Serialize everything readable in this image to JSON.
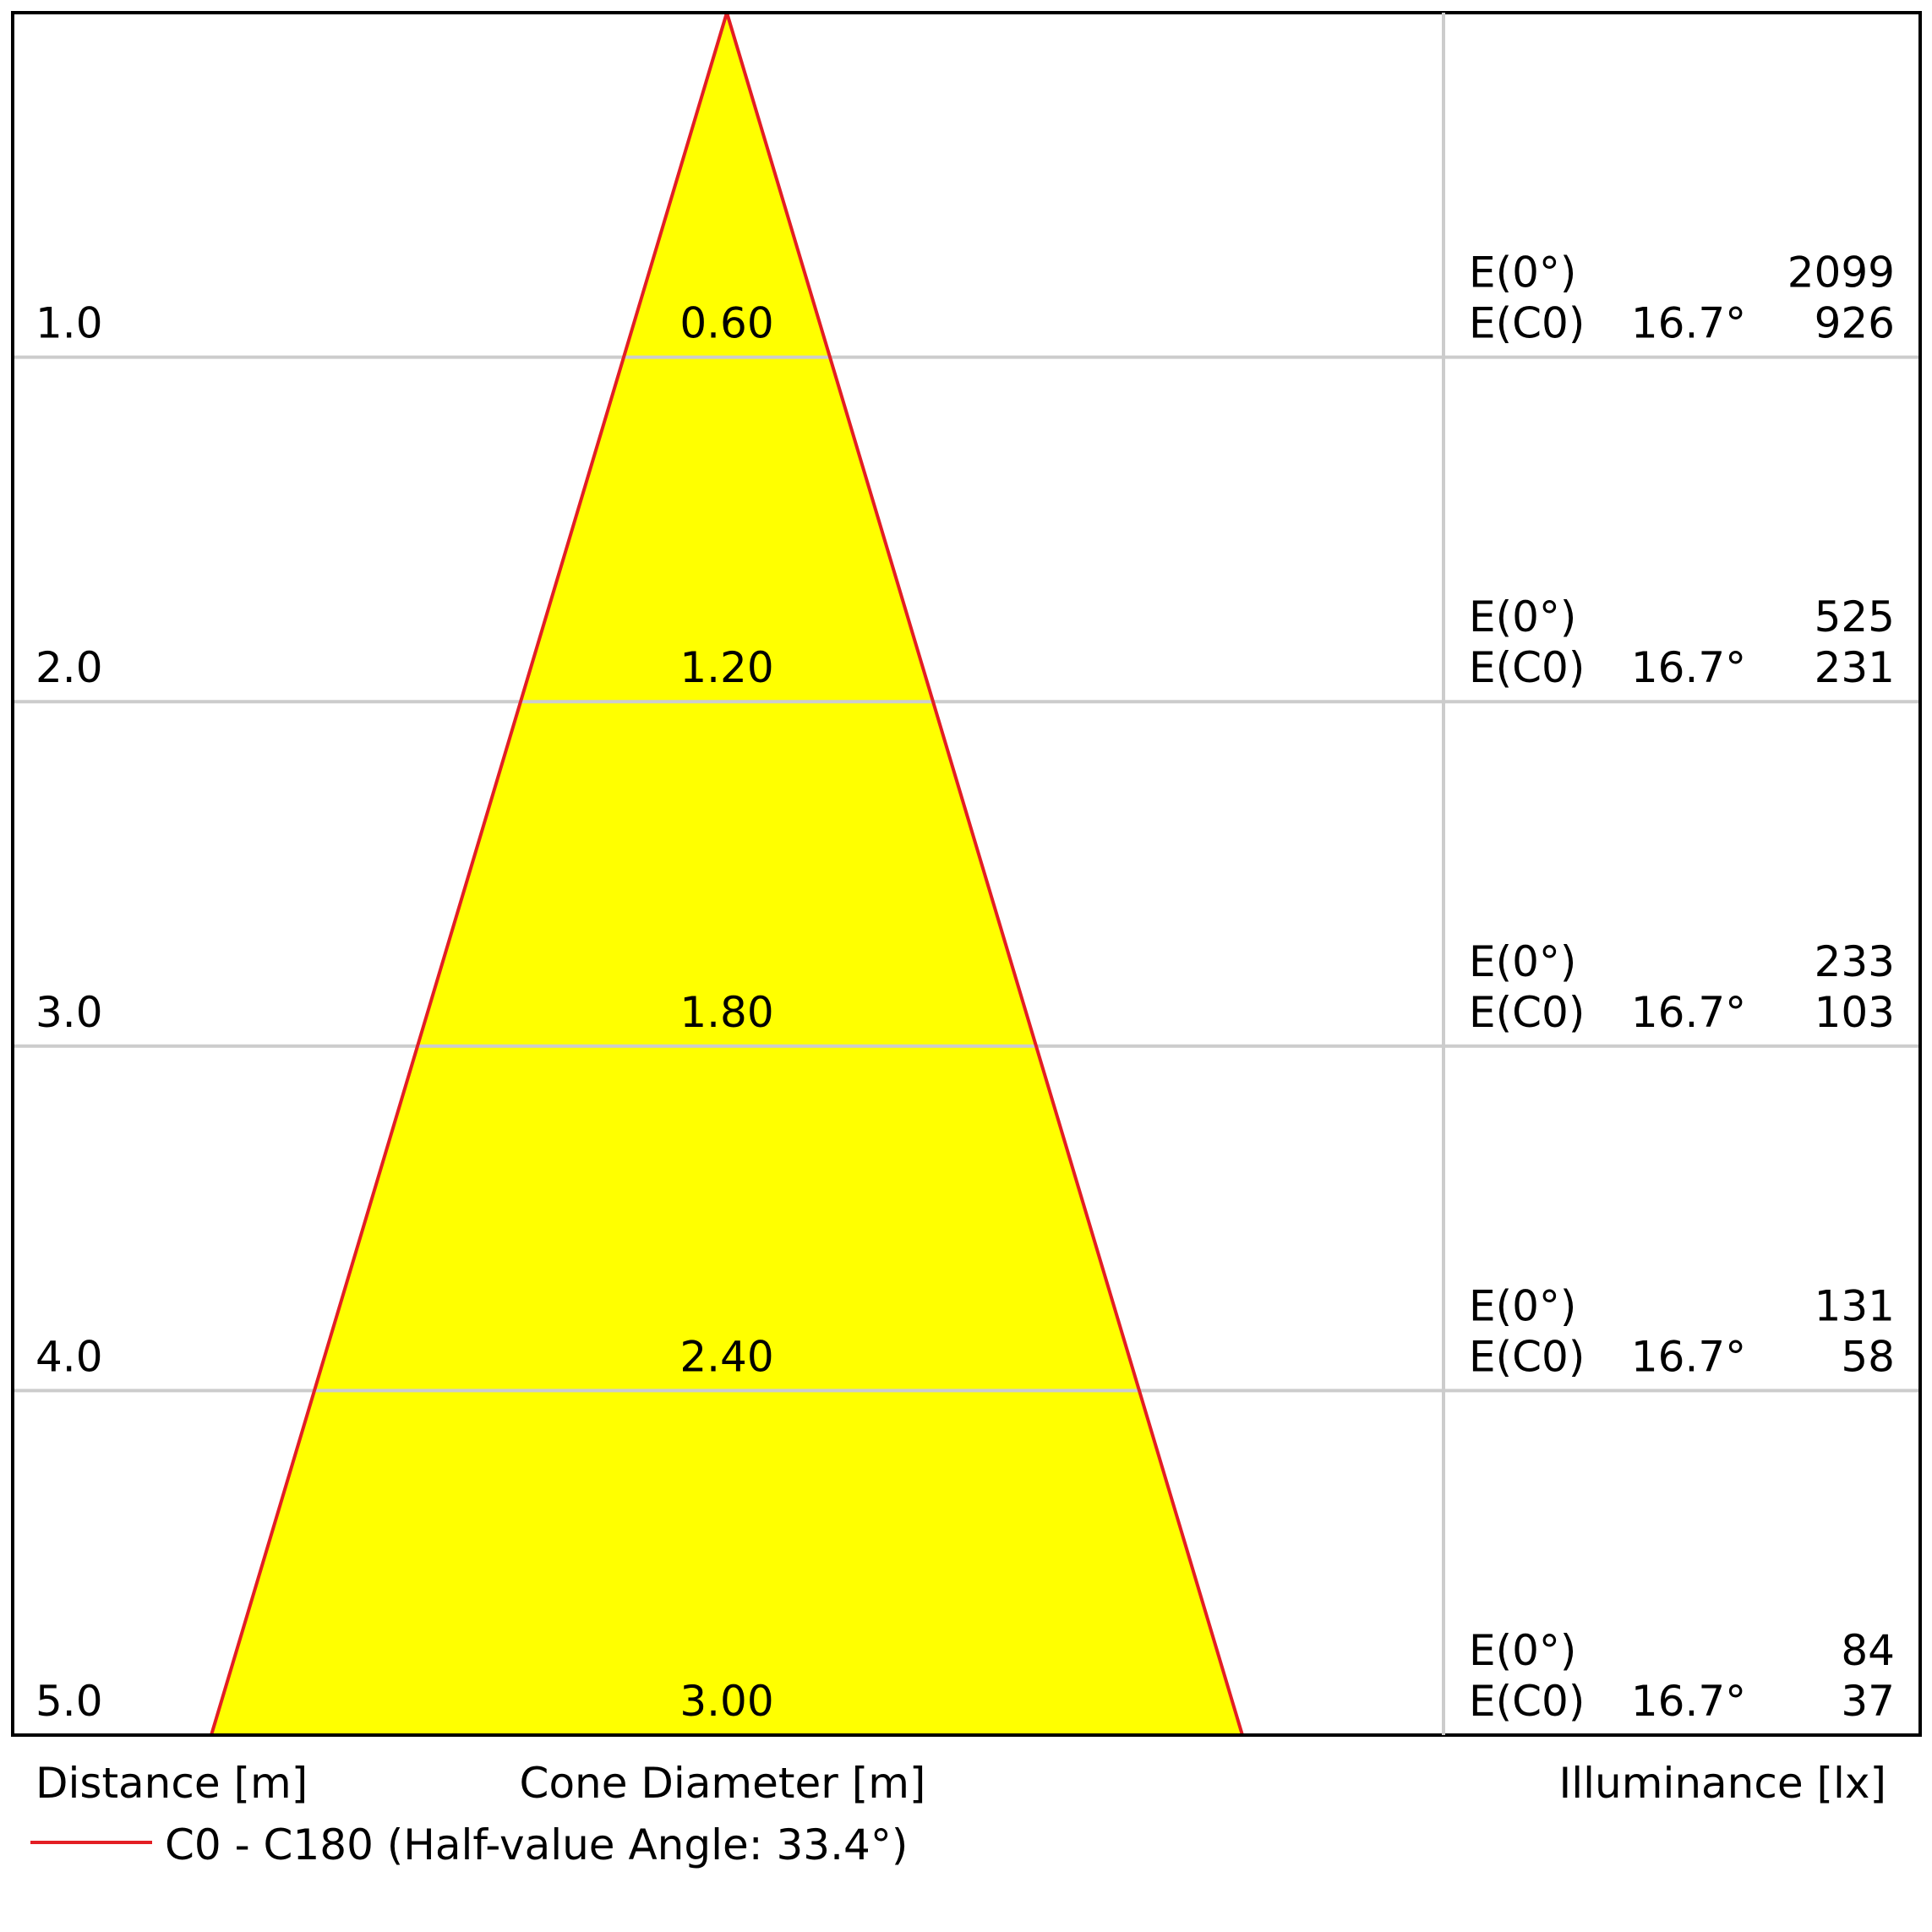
{
  "chart_data": {
    "type": "area",
    "title": "",
    "x_axis_title": "Cone Diameter [m]",
    "y_axis_title": "Distance [m]",
    "table_title": "Illuminance [lx]",
    "ylim": [
      0,
      5
    ],
    "distances": [
      "1.0",
      "2.0",
      "3.0",
      "4.0",
      "5.0"
    ],
    "cone_diameters": [
      "0.60",
      "1.20",
      "1.80",
      "2.40",
      "3.00"
    ],
    "cone_diameter_values": [
      0.6,
      1.2,
      1.8,
      2.4,
      3.0
    ],
    "illuminance": [
      {
        "e0_label": "E(0°)",
        "e0": "2099",
        "ec0_label": "E(C0)",
        "angle": "16.7°",
        "ec0": "926"
      },
      {
        "e0_label": "E(0°)",
        "e0": "525",
        "ec0_label": "E(C0)",
        "angle": "16.7°",
        "ec0": "231"
      },
      {
        "e0_label": "E(0°)",
        "e0": "233",
        "ec0_label": "E(C0)",
        "angle": "16.7°",
        "ec0": "103"
      },
      {
        "e0_label": "E(0°)",
        "e0": "131",
        "ec0_label": "E(C0)",
        "angle": "16.7°",
        "ec0": "58"
      },
      {
        "e0_label": "E(0°)",
        "e0": "84",
        "ec0_label": "E(C0)",
        "angle": "16.7°",
        "ec0": "37"
      }
    ],
    "legend": {
      "label": "C0 - C180 (Half-value Angle: 33.4°)",
      "placement": "bottom-left"
    },
    "half_value_angle_deg": 33.4,
    "grid": true,
    "colors": {
      "cone_fill": "#ffff00",
      "cone_edge": "#e31e24",
      "grid": "#cccccc",
      "frame": "#000000"
    }
  }
}
